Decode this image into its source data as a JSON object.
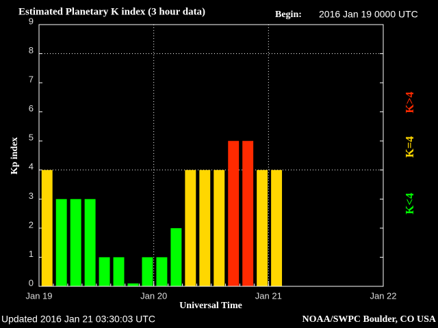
{
  "chart_data": {
    "type": "bar",
    "title": "Estimated Planetary K index (3 hour data)",
    "begin_label": "Begin:",
    "begin_value": "2016 Jan 19 0000 UTC",
    "ylabel": "Kp index",
    "xlabel": "Universal Time",
    "updated": "Updated 2016 Jan 21 03:30:03 UTC",
    "source": "NOAA/SWPC Boulder, CO USA",
    "x": [
      0,
      3,
      6,
      9,
      12,
      15,
      18,
      21,
      24,
      27,
      30,
      33,
      36,
      39,
      42,
      45,
      48
    ],
    "values": [
      4,
      3,
      3,
      3,
      1,
      1,
      0.1,
      1,
      1,
      2,
      4,
      4,
      4,
      5,
      5,
      4,
      4
    ],
    "colors": [
      "#ffd700",
      "#00ff00",
      "#00ff00",
      "#00ff00",
      "#00ff00",
      "#00ff00",
      "#00ff00",
      "#00ff00",
      "#00ff00",
      "#00ff00",
      "#ffd700",
      "#ffd700",
      "#ffd700",
      "#ff2a00",
      "#ff2a00",
      "#ffd700",
      "#ffd700"
    ],
    "bar_width": 3,
    "xlim": [
      0,
      72
    ],
    "xticks": [
      {
        "value": 0,
        "label": "Jan 19"
      },
      {
        "value": 24,
        "label": "Jan 20"
      },
      {
        "value": 48,
        "label": "Jan 21"
      },
      {
        "value": 72,
        "label": "Jan 22"
      }
    ],
    "ylim": [
      0,
      9
    ],
    "yticks": [
      0,
      1,
      2,
      3,
      4,
      5,
      6,
      7,
      8,
      9
    ],
    "ygrid": [
      4,
      8
    ],
    "legend": [
      {
        "label": "K<4",
        "color": "#00ff00"
      },
      {
        "label": "K=4",
        "color": "#ffd700"
      },
      {
        "label": "K>4",
        "color": "#ff2a00"
      }
    ]
  }
}
